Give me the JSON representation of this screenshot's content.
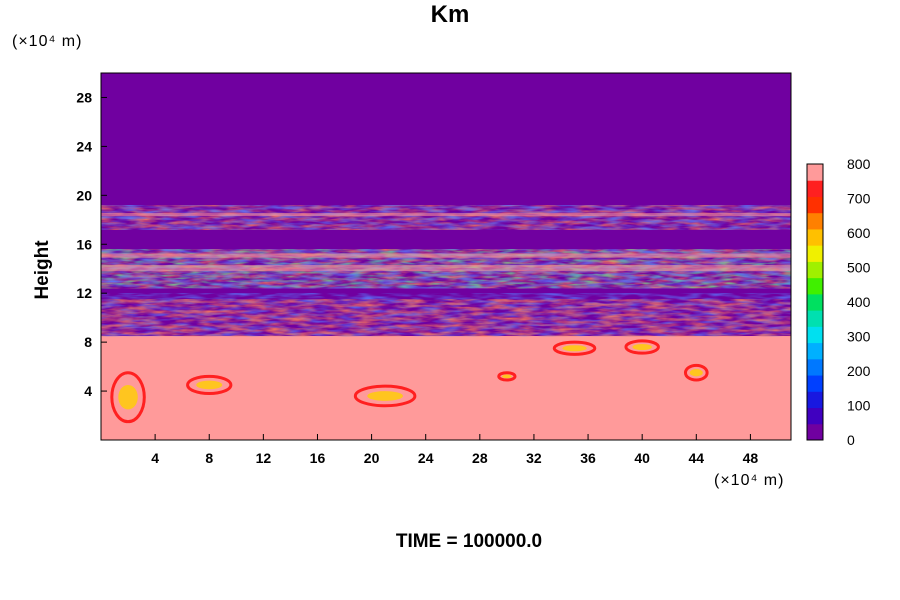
{
  "chart_data": {
    "type": "heatmap",
    "title": "Km",
    "ylabel": "Height",
    "xlabel": "",
    "x_unit": "(×10⁴ m)",
    "y_unit": "(×10⁴ m)",
    "xlim": [
      0,
      51
    ],
    "ylim": [
      0,
      30
    ],
    "x_ticks": [
      4,
      8,
      12,
      16,
      20,
      24,
      28,
      32,
      36,
      40,
      44,
      48
    ],
    "y_ticks": [
      4,
      8,
      12,
      16,
      20,
      24,
      28
    ],
    "colorbar": {
      "range": [
        0,
        800
      ],
      "tick_labels": [
        0,
        100,
        200,
        300,
        400,
        500,
        600,
        700,
        800
      ],
      "levels": 16
    },
    "regions": [
      {
        "from_height": 0,
        "to_height": 8.5,
        "value": 800
      },
      {
        "from_height": 8.5,
        "to_height": 19,
        "value": "mixed 0–800 filaments"
      },
      {
        "from_height": 19,
        "to_height": 30,
        "value": 0
      }
    ]
  },
  "footer": {
    "time_label": "TIME = 100000.0"
  }
}
